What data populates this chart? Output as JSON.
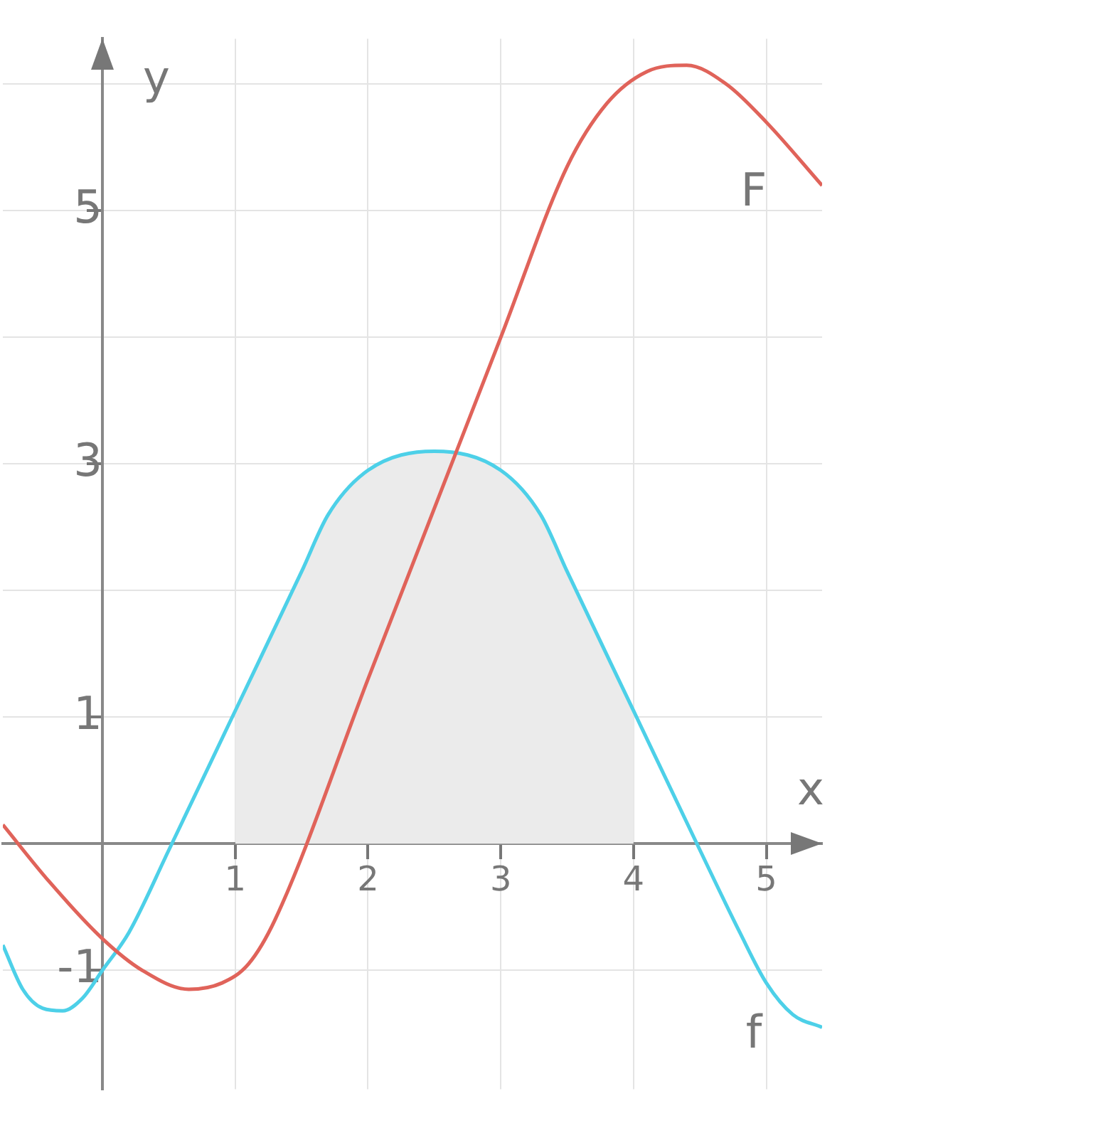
{
  "chart_data": {
    "type": "line",
    "xlabel": "x",
    "ylabel": "y",
    "xlim": [
      -0.75,
      5.42
    ],
    "ylim": [
      -1.94,
      6.36
    ],
    "xticks": [
      1,
      2,
      3,
      4,
      5
    ],
    "yticks": [
      {
        "value": -1,
        "label": "-1"
      },
      {
        "value": 0,
        "label": null
      },
      1,
      {
        "value": 2,
        "label": null
      },
      3,
      {
        "value": 4,
        "label": null
      },
      5,
      {
        "value": 6,
        "label": null
      }
    ],
    "grid": true,
    "legend": false,
    "marker": "none",
    "series": [
      {
        "type": "area",
        "color": "#ebebeb",
        "x": [
          1,
          1.5,
          1.7,
          2,
          2.5,
          3,
          3.3,
          3.5,
          4
        ],
        "values": [
          1.05,
          2.15,
          2.6,
          2.95,
          3.1,
          2.95,
          2.6,
          2.15,
          1.05
        ]
      },
      {
        "name": "f",
        "color": "#4dd0e8",
        "x": [
          -0.75,
          -0.6,
          -0.45,
          -0.3,
          -0.15,
          0,
          0.2,
          0.5,
          1,
          1.5,
          1.7,
          2,
          2.5,
          3,
          3.3,
          3.5,
          4,
          4.5,
          4.8,
          5,
          5.2,
          5.42
        ],
        "values": [
          -0.8,
          -1.15,
          -1.3,
          -1.32,
          -1.22,
          -1,
          -0.7,
          -0.05,
          1.05,
          2.15,
          2.6,
          2.95,
          3.1,
          2.95,
          2.6,
          2.15,
          1.05,
          -0.05,
          -0.7,
          -1.1,
          -1.35,
          -1.45
        ]
      },
      {
        "name": "F",
        "color": "#e0635a",
        "x": [
          -0.75,
          -0.4,
          0,
          0.3,
          0.65,
          0.9,
          1.1,
          1.3,
          2,
          3,
          3.5,
          3.8,
          4.1,
          4.4,
          4.7,
          5,
          5.42
        ],
        "values": [
          0.15,
          -0.3,
          -0.75,
          -1,
          -1.15,
          -1.1,
          -0.95,
          -0.6,
          1.3,
          4,
          5.35,
          5.85,
          6.1,
          6.15,
          6,
          5.7,
          5.2
        ]
      }
    ]
  }
}
